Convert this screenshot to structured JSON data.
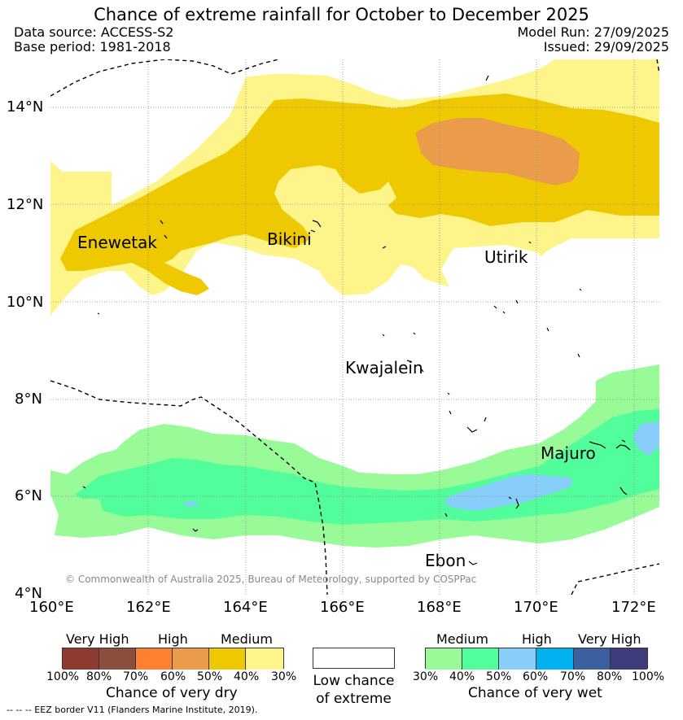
{
  "header": {
    "title": "Chance of extreme rainfall for October to December 2025",
    "data_source": "Data source: ACCESS-S2",
    "base_period": "Base period: 1981-2018",
    "model_run": "Model Run: 27/09/2025",
    "issued": "Issued: 29/09/2025"
  },
  "map": {
    "lat_labels": [
      "14°N",
      "12°N",
      "10°N",
      "8°N",
      "6°N",
      "4°N"
    ],
    "lon_labels": [
      "160°E",
      "162°E",
      "164°E",
      "166°E",
      "168°E",
      "170°E",
      "172°E"
    ],
    "places": {
      "enewetak": "Enewetak",
      "bikini": "Bikini",
      "utirik": "Utirik",
      "kwajalein": "Kwajalein",
      "majuro": "Majuro",
      "ebon": "Ebon"
    },
    "copyright": "© Commonwealth of Australia 2025, Bureau of Meteorology, supported by COSPPac"
  },
  "legend": {
    "dry": {
      "categories": [
        "Very High",
        "High",
        "Medium"
      ],
      "percents": [
        "100%",
        "80%",
        "70%",
        "60%",
        "50%",
        "40%",
        "30%"
      ],
      "colors": [
        "#8e3a2e",
        "#8b4e3c",
        "#ff8030",
        "#eb9c4a",
        "#eec800",
        "#fdf48a"
      ],
      "title": "Chance of very dry"
    },
    "neutral": {
      "line1": "Low chance",
      "line2": "of extreme"
    },
    "wet": {
      "categories": [
        "Medium",
        "High",
        "Very High"
      ],
      "percents": [
        "30%",
        "40%",
        "50%",
        "60%",
        "70%",
        "80%",
        "100%"
      ],
      "colors": [
        "#98fb98",
        "#52fd9c",
        "#87cefa",
        "#00b0ef",
        "#3a60a0",
        "#3e3c7a"
      ],
      "title": "Chance of very wet"
    }
  },
  "footnote": "--  --  -- EEZ border V11 (Flanders Marine Institute, 2019)."
}
